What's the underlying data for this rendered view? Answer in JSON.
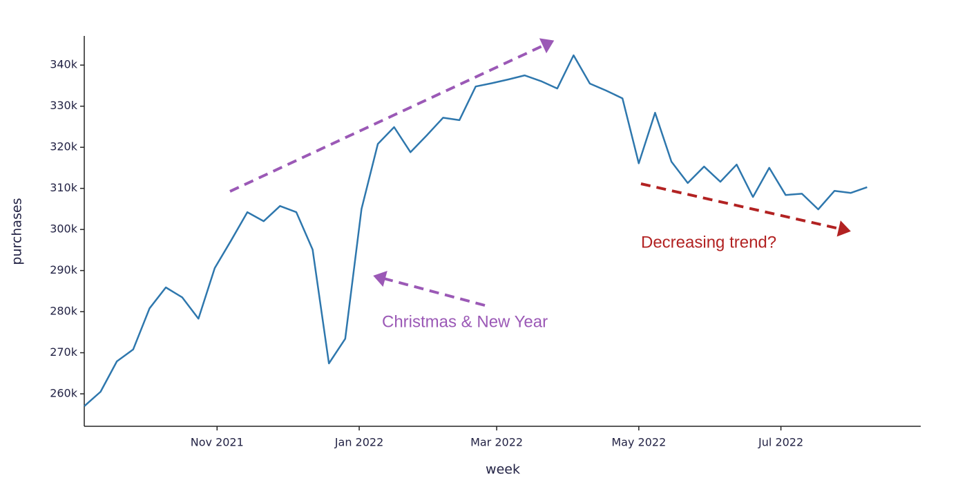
{
  "chart_data": {
    "type": "line",
    "x_label": "week",
    "y_label": "purchases",
    "x": [
      "2021-09-05",
      "2021-09-12",
      "2021-09-19",
      "2021-09-26",
      "2021-10-03",
      "2021-10-10",
      "2021-10-17",
      "2021-10-24",
      "2021-10-31",
      "2021-11-07",
      "2021-11-14",
      "2021-11-21",
      "2021-11-28",
      "2021-12-05",
      "2021-12-12",
      "2021-12-19",
      "2021-12-26",
      "2022-01-02",
      "2022-01-09",
      "2022-01-16",
      "2022-01-23",
      "2022-01-30",
      "2022-02-06",
      "2022-02-13",
      "2022-02-20",
      "2022-02-27",
      "2022-03-06",
      "2022-03-13",
      "2022-03-20",
      "2022-03-27",
      "2022-04-03",
      "2022-04-10",
      "2022-04-17",
      "2022-04-24",
      "2022-05-01",
      "2022-05-08",
      "2022-05-15",
      "2022-05-22",
      "2022-05-29",
      "2022-06-05",
      "2022-06-12",
      "2022-06-19",
      "2022-06-26",
      "2022-07-03",
      "2022-07-10",
      "2022-07-17",
      "2022-07-24",
      "2022-07-31",
      "2022-08-07"
    ],
    "series": [
      {
        "name": "purchases",
        "color": "#2e77ad",
        "values": [
          257000,
          260500,
          267900,
          270800,
          280800,
          285900,
          283500,
          278300,
          290600,
          297300,
          304200,
          302000,
          305700,
          304200,
          295100,
          267400,
          273400,
          305000,
          320800,
          324900,
          318800,
          322900,
          327200,
          326600,
          334800,
          335600,
          336500,
          337500,
          336100,
          334300,
          342400,
          335500,
          333800,
          331900,
          316100,
          328400,
          316500,
          311300,
          315300,
          311600,
          315800,
          307900,
          315000,
          308400,
          308700,
          304900,
          309400,
          308900,
          310300
        ]
      }
    ],
    "xlim": [
      "2021-09-05",
      "2022-08-30"
    ],
    "xticks": [
      {
        "value": "2021-11-01",
        "label": "Nov 2021"
      },
      {
        "value": "2022-01-01",
        "label": "Jan 2022"
      },
      {
        "value": "2022-03-01",
        "label": "Mar 2022"
      },
      {
        "value": "2022-05-01",
        "label": "May 2022"
      },
      {
        "value": "2022-07-01",
        "label": "Jul 2022"
      }
    ],
    "ylim": [
      252100,
      347100
    ],
    "yticks": [
      {
        "value": 260000,
        "label": "260k"
      },
      {
        "value": 270000,
        "label": "270k"
      },
      {
        "value": 280000,
        "label": "280k"
      },
      {
        "value": 290000,
        "label": "290k"
      },
      {
        "value": 300000,
        "label": "300k"
      },
      {
        "value": 310000,
        "label": "310k"
      },
      {
        "value": 320000,
        "label": "320k"
      },
      {
        "value": 330000,
        "label": "330k"
      },
      {
        "value": 340000,
        "label": "340k"
      }
    ],
    "annotations": [
      {
        "text": "Christmas & New Year",
        "color": "#9b59b6"
      },
      {
        "text": "Decreasing trend?",
        "color": "#b22222"
      }
    ]
  }
}
